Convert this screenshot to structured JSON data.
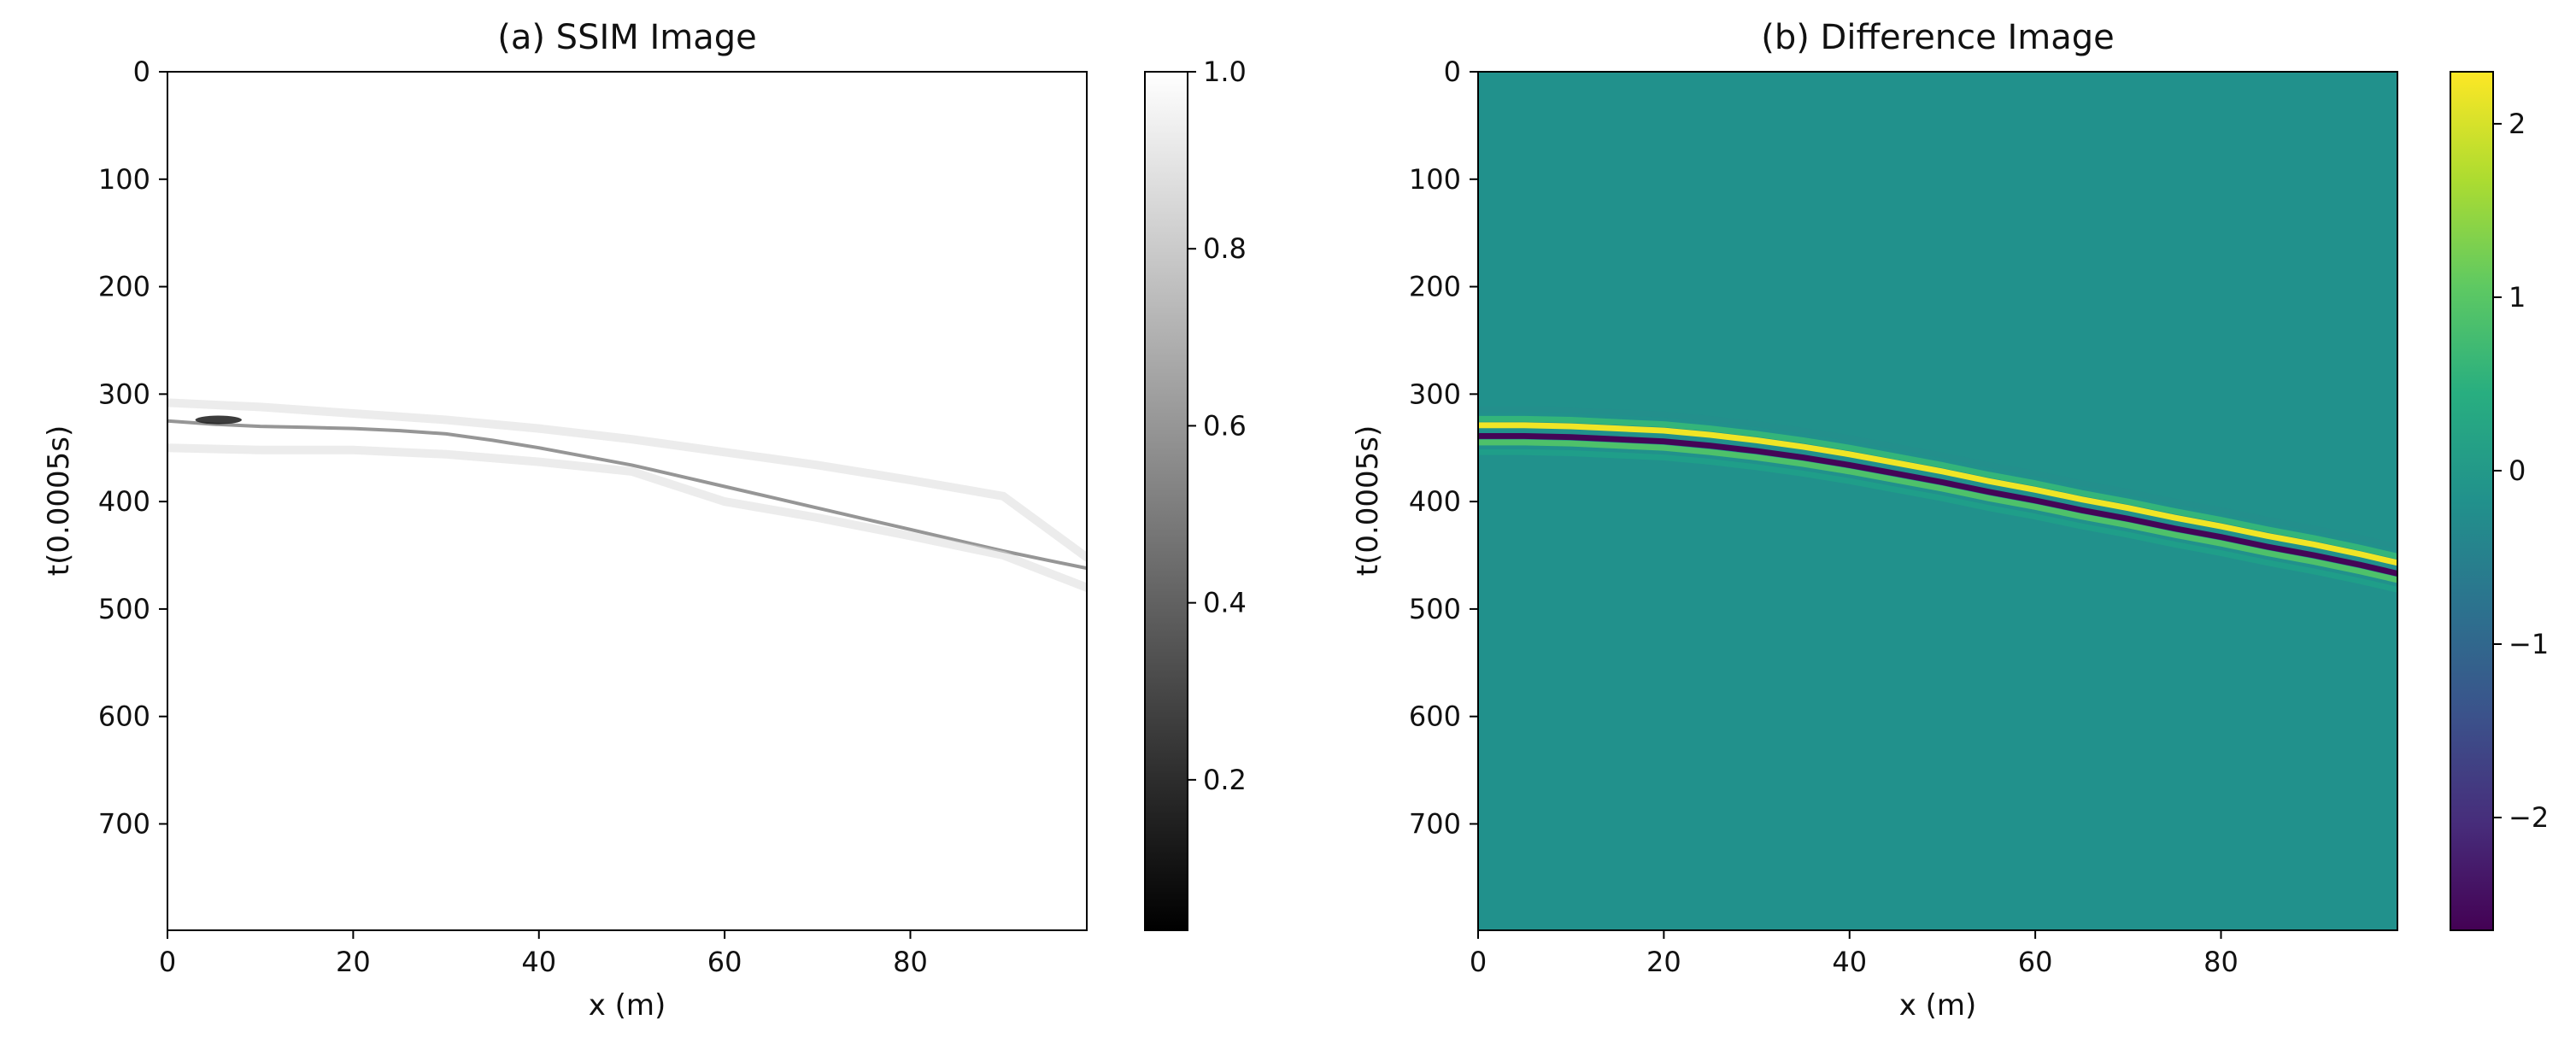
{
  "chart_data": [
    {
      "type": "heatmap",
      "title": "(a) SSIM Image",
      "xlabel": "x (m)",
      "ylabel": "t(0.0005s)",
      "xlim": [
        0,
        99
      ],
      "ylim": [
        799,
        0
      ],
      "xticks": [
        0,
        20,
        40,
        60,
        80
      ],
      "yticks": [
        0,
        100,
        200,
        300,
        400,
        500,
        600,
        700
      ],
      "colormap": "gray",
      "colorbar": {
        "range": [
          0.03,
          1.0
        ],
        "ticks": [
          "0.2",
          "0.4",
          "0.6",
          "0.8",
          "1.0"
        ],
        "tick_values": [
          0.2,
          0.4,
          0.6,
          0.8,
          1.0
        ]
      },
      "background_value": 1.0,
      "features": [
        {
          "name": "main-low-ssim-band",
          "value": 0.45,
          "x": [
            0,
            5,
            10,
            15,
            20,
            25,
            30,
            35,
            40,
            45,
            50,
            55,
            60,
            65,
            70,
            75,
            80,
            85,
            90,
            95,
            99
          ],
          "t": [
            325,
            328,
            330,
            331,
            332,
            334,
            337,
            343,
            350,
            358,
            366,
            376,
            386,
            396,
            406,
            416,
            426,
            436,
            446,
            455,
            462
          ]
        },
        {
          "name": "upper-faint-band",
          "value": 0.85,
          "x": [
            0,
            10,
            20,
            30,
            40,
            50,
            60,
            70,
            80,
            90,
            99
          ],
          "t": [
            308,
            312,
            318,
            324,
            332,
            342,
            354,
            366,
            380,
            395,
            452
          ]
        },
        {
          "name": "lower-faint-band",
          "value": 0.85,
          "x": [
            0,
            10,
            20,
            30,
            40,
            50,
            60,
            70,
            80,
            90,
            99
          ],
          "t": [
            350,
            352,
            352,
            356,
            363,
            372,
            400,
            415,
            432,
            450,
            480
          ]
        }
      ],
      "dark_spot": {
        "x": [
          3,
          8
        ],
        "t": [
          320,
          328
        ],
        "value": 0.1
      }
    },
    {
      "type": "heatmap",
      "title": "(b) Difference Image",
      "xlabel": "x (m)",
      "ylabel": "t(0.0005s)",
      "xlim": [
        0,
        99
      ],
      "ylim": [
        799,
        0
      ],
      "xticks": [
        0,
        20,
        40,
        60,
        80
      ],
      "yticks": [
        0,
        100,
        200,
        300,
        400,
        500,
        600,
        700
      ],
      "colormap": "viridis",
      "colorbar": {
        "range": [
          -2.65,
          2.3
        ],
        "ticks": [
          "−2",
          "−1",
          "0",
          "1",
          "2"
        ],
        "tick_values": [
          -2,
          -1,
          0,
          1,
          2
        ]
      },
      "background_value": 0,
      "wavefront": {
        "x": [
          0,
          5,
          10,
          15,
          20,
          25,
          30,
          35,
          40,
          45,
          50,
          55,
          60,
          65,
          70,
          75,
          80,
          85,
          90,
          95,
          99
        ],
        "t": [
          334,
          334,
          335,
          337,
          339,
          343,
          348,
          354,
          361,
          369,
          377,
          386,
          394,
          403,
          411,
          420,
          428,
          437,
          445,
          454,
          462
        ]
      },
      "wavelet_profile": {
        "offset_t": [
          -20,
          -11,
          -5,
          0,
          5,
          11,
          20
        ],
        "value": [
          -0.2,
          0.6,
          2.2,
          0.0,
          -2.6,
          0.9,
          0.1
        ]
      }
    }
  ]
}
